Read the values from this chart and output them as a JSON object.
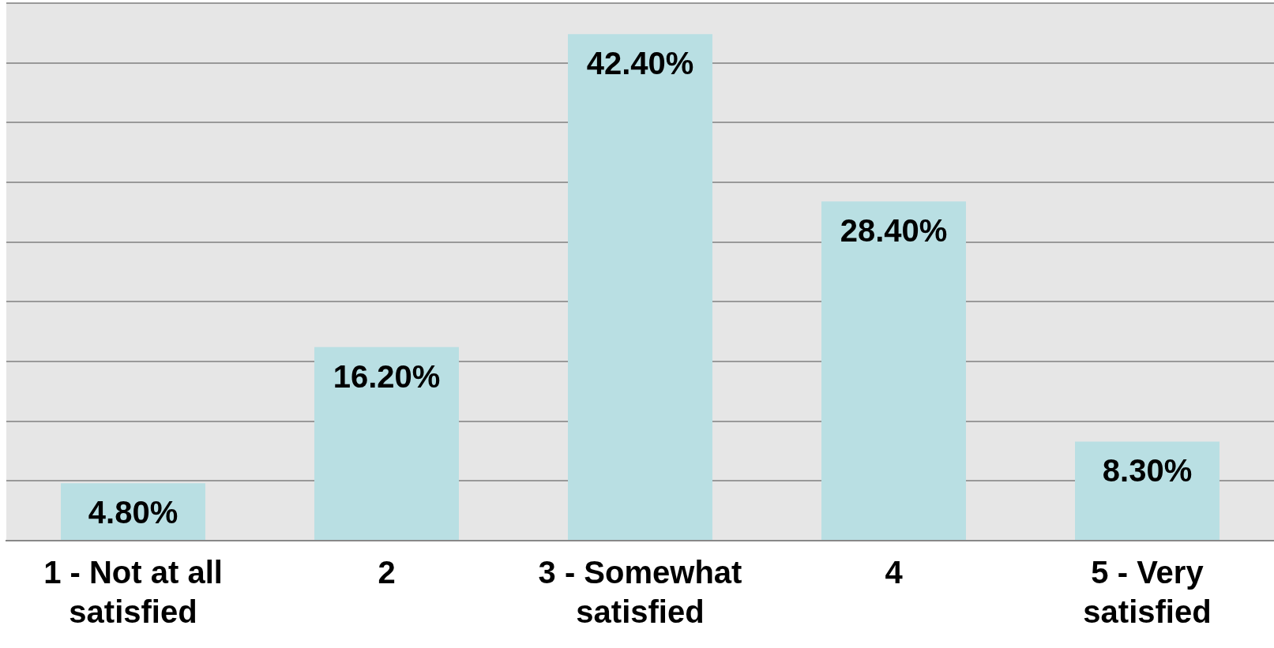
{
  "chart_data": {
    "type": "bar",
    "categories": [
      "1 - Not at all satisfied",
      "2",
      "3 - Somewhat satisfied",
      "4",
      "5 - Very satisfied"
    ],
    "values": [
      4.8,
      16.2,
      42.4,
      28.4,
      8.3
    ],
    "value_labels": [
      "4.80%",
      "16.20%",
      "42.40%",
      "28.40%",
      "8.30%"
    ],
    "color": "#b9dfe3",
    "grid": "y",
    "tick_labels": "x"
  }
}
